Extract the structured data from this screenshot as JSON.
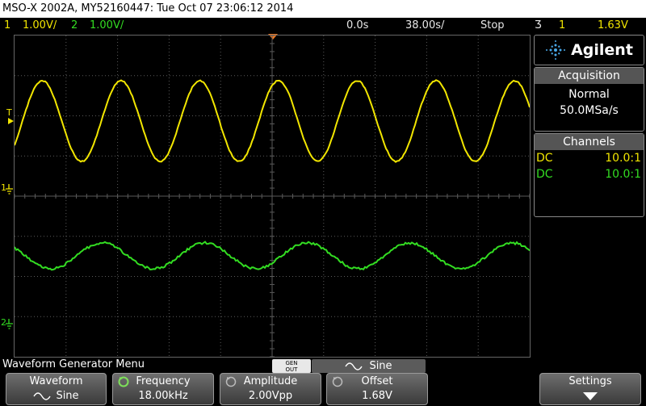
{
  "title_bar": {
    "text": "MSO-X 2002A, MY52160447: Tue Oct 07 23:06:12 2014"
  },
  "status_bar": {
    "ch1_num": "1",
    "ch1_scale": "1.00V/",
    "ch2_num": "2",
    "ch2_scale": "1.00V/",
    "time_delay": "0.0s",
    "time_scale": "38.00s/",
    "run_state": "Stop",
    "trig_symbol": "Ʒ",
    "trig_source": "1",
    "trig_level": "1.63V"
  },
  "markers": {
    "trigger_marker": "T",
    "ch1_ground": "1",
    "ch2_ground": "2"
  },
  "right_panel": {
    "brand": "Agilent",
    "acquisition": {
      "header": "Acquisition",
      "mode": "Normal",
      "rate": "50.0MSa/s"
    },
    "channels": {
      "header": "Channels",
      "rows": [
        {
          "coupling": "DC",
          "probe": "10.0:1"
        },
        {
          "coupling": "DC",
          "probe": "10.0:1"
        }
      ]
    }
  },
  "menu": {
    "title": "Waveform Generator Menu",
    "gen_out_line1": "GEN",
    "gen_out_line2": "OUT",
    "waveform_tab": "Sine",
    "softkeys": {
      "waveform": {
        "label": "Waveform",
        "value": "Sine"
      },
      "frequency": {
        "label": "Frequency",
        "value": "18.00kHz"
      },
      "amplitude": {
        "label": "Amplitude",
        "value": "2.00Vpp"
      },
      "offset": {
        "label": "Offset",
        "value": "1.68V"
      },
      "settings": {
        "label": "Settings"
      }
    }
  },
  "colors": {
    "ch1": "#f2e600",
    "ch2": "#33dd22",
    "grid": "#5a5a5a"
  },
  "icons": [
    "agilent-spark-icon",
    "sine-wave-icon",
    "knob-icon",
    "down-arrow-icon",
    "trigger-edge-icon"
  ]
}
